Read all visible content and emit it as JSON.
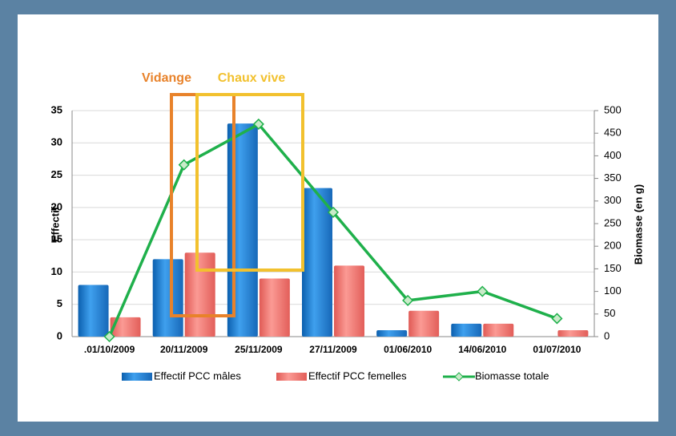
{
  "chart_data": {
    "type": "bar",
    "categories": [
      ".01/10/2009",
      "20/11/2009",
      "25/11/2009",
      "27/11/2009",
      "01/06/2010",
      "14/06/2010",
      "01/07/2010"
    ],
    "series": [
      {
        "name": "Effectif PCC mâles",
        "color": "#1f80d6",
        "values": [
          8,
          12,
          33,
          23,
          1,
          2,
          0
        ]
      },
      {
        "name": "Effectif PCC femelles",
        "color": "#f4736e",
        "values": [
          3,
          13,
          9,
          11,
          4,
          2,
          1
        ]
      },
      {
        "name": "Biomasse totale",
        "color": "#1fb04b",
        "type": "line",
        "axis": "y2",
        "values": [
          0,
          380,
          470,
          275,
          80,
          100,
          40
        ]
      }
    ],
    "ylabel": "Effectif",
    "y2label": "Biomasse (en g)",
    "ylim": [
      0,
      35
    ],
    "yticks": [
      0,
      5,
      10,
      15,
      20,
      25,
      30,
      35
    ],
    "y2lim": [
      0,
      500
    ],
    "y2ticks": [
      0,
      50,
      100,
      150,
      200,
      250,
      300,
      350,
      400,
      450,
      500
    ],
    "annotations": [
      {
        "text": "Vidange",
        "color": "#e8822a"
      },
      {
        "text": "Chaux vive",
        "color": "#f2c12e"
      }
    ],
    "legend": "bottom",
    "grid": true
  }
}
